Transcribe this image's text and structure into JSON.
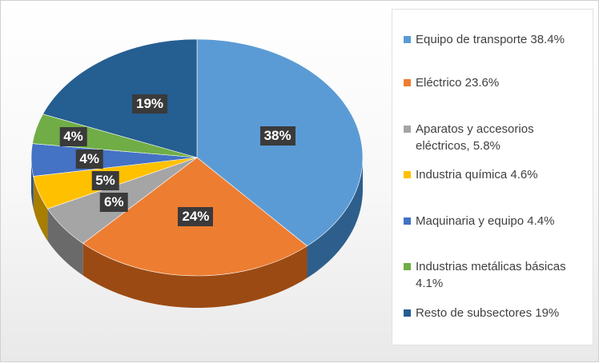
{
  "chart_data": {
    "type": "pie",
    "title": "",
    "categories": [
      "Equipo de transporte",
      "Eléctrico",
      "Aparatos y accesorios eléctricos,",
      "Industria química",
      "Maquinaria y equipo",
      "Industrias metálicas básicas",
      "Resto de subsectores"
    ],
    "values": [
      38.4,
      23.6,
      5.8,
      4.6,
      4.4,
      4.1,
      19
    ],
    "data_labels": [
      "38%",
      "24%",
      "6%",
      "5%",
      "4%",
      "4%",
      "19%"
    ],
    "legend_labels": [
      "Equipo de transporte 38.4%",
      "Eléctrico 23.6%",
      "Aparatos y accesorios eléctricos, 5.8%",
      "Industria química 4.6%",
      "Maquinaria y equipo 4.4%",
      "Industrias metálicas básicas 4.1%",
      "Resto de subsectores 19%"
    ],
    "colors": [
      "#5b9bd5",
      "#ed7d31",
      "#a5a5a5",
      "#ffc000",
      "#4472c4",
      "#70ad47",
      "#255e91"
    ],
    "side_colors": [
      "#2e5f8c",
      "#9c4a13",
      "#6a6a6a",
      "#a87d00",
      "#2a4f8f",
      "#477330",
      "#16385a"
    ],
    "legend_position": "right",
    "style": "3d"
  }
}
